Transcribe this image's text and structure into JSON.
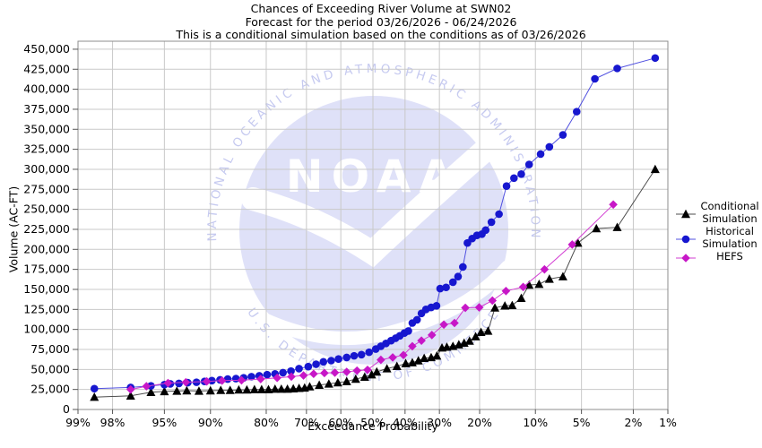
{
  "chart_data": {
    "type": "line",
    "title": "Chances of Exceeding River Volume at SWN02",
    "subtitle": "Forecast for the period 03/26/2026 - 06/24/2026",
    "note": "This is a conditional simulation based on the conditions as of 03/26/2026",
    "xlabel": "Exceedance Probability",
    "ylabel": "Volume (AC-FT)",
    "x_axis": {
      "scale": "probit",
      "range_percent": [
        99,
        1
      ],
      "ticks_percent": [
        99,
        98,
        95,
        90,
        80,
        70,
        60,
        50,
        40,
        30,
        20,
        10,
        5,
        2,
        1
      ],
      "tick_suffix": "%"
    },
    "y_axis": {
      "range": [
        0,
        460000
      ],
      "ticks": [
        0,
        25000,
        50000,
        75000,
        100000,
        125000,
        150000,
        175000,
        200000,
        225000,
        250000,
        275000,
        300000,
        325000,
        350000,
        375000,
        400000,
        425000,
        450000
      ],
      "tick_format": "thousands-comma",
      "grid": true
    },
    "legend_position": "right",
    "point_format": "[exceedance_percent, volume_acft]",
    "series": [
      {
        "name": "Conditional Simulation",
        "marker": "triangle",
        "marker_color": "#000000",
        "line_color": "#4d4d4d",
        "points": [
          [
            98.6,
            15500
          ],
          [
            97.2,
            17000
          ],
          [
            96.0,
            21500
          ],
          [
            95.0,
            22500
          ],
          [
            93.9,
            23000
          ],
          [
            92.9,
            23500
          ],
          [
            91.5,
            23000
          ],
          [
            90.0,
            23500
          ],
          [
            88.5,
            24000
          ],
          [
            87.0,
            24000
          ],
          [
            85.5,
            24500
          ],
          [
            84.0,
            24500
          ],
          [
            82.5,
            25000
          ],
          [
            81.0,
            25000
          ],
          [
            79.5,
            25000
          ],
          [
            78.0,
            25500
          ],
          [
            76.5,
            25500
          ],
          [
            75.0,
            25500
          ],
          [
            73.5,
            26000
          ],
          [
            72.0,
            26500
          ],
          [
            70.5,
            27000
          ],
          [
            69.1,
            28500
          ],
          [
            66.4,
            30500
          ],
          [
            63.6,
            32000
          ],
          [
            60.9,
            33500
          ],
          [
            58.2,
            35000
          ],
          [
            55.4,
            38000
          ],
          [
            52.6,
            40500
          ],
          [
            50.4,
            43500
          ],
          [
            48.8,
            47000
          ],
          [
            45.6,
            51000
          ],
          [
            42.5,
            54000
          ],
          [
            39.8,
            57500
          ],
          [
            37.8,
            58500
          ],
          [
            36.0,
            61000
          ],
          [
            34.3,
            64000
          ],
          [
            32.3,
            65000
          ],
          [
            30.7,
            67000
          ],
          [
            29.3,
            77000
          ],
          [
            28.0,
            78000
          ],
          [
            26.4,
            79000
          ],
          [
            24.9,
            81000
          ],
          [
            23.6,
            83000
          ],
          [
            22.3,
            85500
          ],
          [
            20.9,
            91000
          ],
          [
            19.7,
            96500
          ],
          [
            18.2,
            98000
          ],
          [
            16.8,
            127000
          ],
          [
            14.9,
            129500
          ],
          [
            13.6,
            130000
          ],
          [
            12.1,
            139000
          ],
          [
            10.9,
            155500
          ],
          [
            9.5,
            156500
          ],
          [
            8.2,
            163000
          ],
          [
            6.7,
            166000
          ],
          [
            5.3,
            208000
          ],
          [
            3.9,
            226000
          ],
          [
            2.7,
            227500
          ],
          [
            1.3,
            300000
          ]
        ]
      },
      {
        "name": "Historical Simulation",
        "marker": "circle",
        "marker_color": "#1717cf",
        "line_color": "#5050e0",
        "points": [
          [
            98.6,
            26000
          ],
          [
            97.2,
            27500
          ],
          [
            96.0,
            29500
          ],
          [
            95.0,
            31000
          ],
          [
            94.5,
            32000
          ],
          [
            93.7,
            32500
          ],
          [
            92.8,
            33500
          ],
          [
            91.8,
            34000
          ],
          [
            90.8,
            35000
          ],
          [
            89.8,
            36000
          ],
          [
            88.6,
            37000
          ],
          [
            87.4,
            38000
          ],
          [
            86.0,
            38500
          ],
          [
            84.6,
            39500
          ],
          [
            83.1,
            41000
          ],
          [
            81.5,
            42000
          ],
          [
            79.8,
            43500
          ],
          [
            78.0,
            44500
          ],
          [
            76.1,
            46000
          ],
          [
            74.1,
            48000
          ],
          [
            72.0,
            51000
          ],
          [
            69.5,
            53500
          ],
          [
            67.3,
            56500
          ],
          [
            65.2,
            59500
          ],
          [
            62.9,
            61000
          ],
          [
            60.7,
            63000
          ],
          [
            58.2,
            65000
          ],
          [
            55.9,
            67000
          ],
          [
            53.6,
            68500
          ],
          [
            51.2,
            71500
          ],
          [
            49.1,
            75500
          ],
          [
            47.5,
            79000
          ],
          [
            45.9,
            82500
          ],
          [
            44.3,
            86000
          ],
          [
            42.9,
            89000
          ],
          [
            41.6,
            92000
          ],
          [
            40.2,
            95500
          ],
          [
            39.0,
            98000
          ],
          [
            37.8,
            108000
          ],
          [
            36.4,
            112000
          ],
          [
            35.1,
            120000
          ],
          [
            33.8,
            125000
          ],
          [
            32.3,
            127500
          ],
          [
            30.8,
            129500
          ],
          [
            29.8,
            151000
          ],
          [
            28.2,
            152500
          ],
          [
            26.4,
            159000
          ],
          [
            25.1,
            166000
          ],
          [
            23.9,
            178000
          ],
          [
            22.8,
            208000
          ],
          [
            21.7,
            213500
          ],
          [
            20.6,
            217500
          ],
          [
            19.5,
            219000
          ],
          [
            18.7,
            224000
          ],
          [
            17.5,
            234000
          ],
          [
            16.0,
            244000
          ],
          [
            14.6,
            279000
          ],
          [
            13.3,
            289000
          ],
          [
            12.1,
            294000
          ],
          [
            10.9,
            306000
          ],
          [
            9.3,
            319000
          ],
          [
            8.2,
            328000
          ],
          [
            6.7,
            343000
          ],
          [
            5.4,
            372000
          ],
          [
            4.0,
            413000
          ],
          [
            2.7,
            426000
          ],
          [
            1.3,
            439000
          ]
        ]
      },
      {
        "name": "HEFS",
        "marker": "diamond",
        "marker_color": "#c717c7",
        "line_color": "#d23cd2",
        "points": [
          [
            97.2,
            25000
          ],
          [
            96.3,
            29000
          ],
          [
            94.7,
            33000
          ],
          [
            93.0,
            34000
          ],
          [
            90.5,
            35000
          ],
          [
            88.3,
            36000
          ],
          [
            85.0,
            36500
          ],
          [
            81.2,
            38000
          ],
          [
            77.5,
            39500
          ],
          [
            74.0,
            41000
          ],
          [
            70.8,
            42500
          ],
          [
            68.0,
            44500
          ],
          [
            64.9,
            45500
          ],
          [
            61.8,
            46000
          ],
          [
            58.2,
            47000
          ],
          [
            55.0,
            48500
          ],
          [
            51.7,
            49500
          ],
          [
            47.5,
            62000
          ],
          [
            43.8,
            65000
          ],
          [
            40.5,
            68000
          ],
          [
            37.8,
            79000
          ],
          [
            35.1,
            86000
          ],
          [
            32.1,
            93000
          ],
          [
            28.8,
            106000
          ],
          [
            26.0,
            108000
          ],
          [
            23.3,
            127000
          ],
          [
            20.1,
            127500
          ],
          [
            17.3,
            136000
          ],
          [
            14.7,
            148000
          ],
          [
            11.8,
            153000
          ],
          [
            8.8,
            175000
          ],
          [
            5.8,
            206000
          ],
          [
            2.9,
            256000
          ]
        ]
      }
    ],
    "grid_color": "#c9c9c9",
    "frame_color": "#8c8c8c"
  },
  "watermark": {
    "org": "NOAA",
    "top_arc_text": "NATIONAL OCEANIC AND ATMOSPHERIC ADMINISTRATION",
    "bottom_arc_text": "U.S. DEPARTMENT OF COMMERCE",
    "disc_color": "#dfe1f8",
    "text_color": "#c6caf0"
  }
}
